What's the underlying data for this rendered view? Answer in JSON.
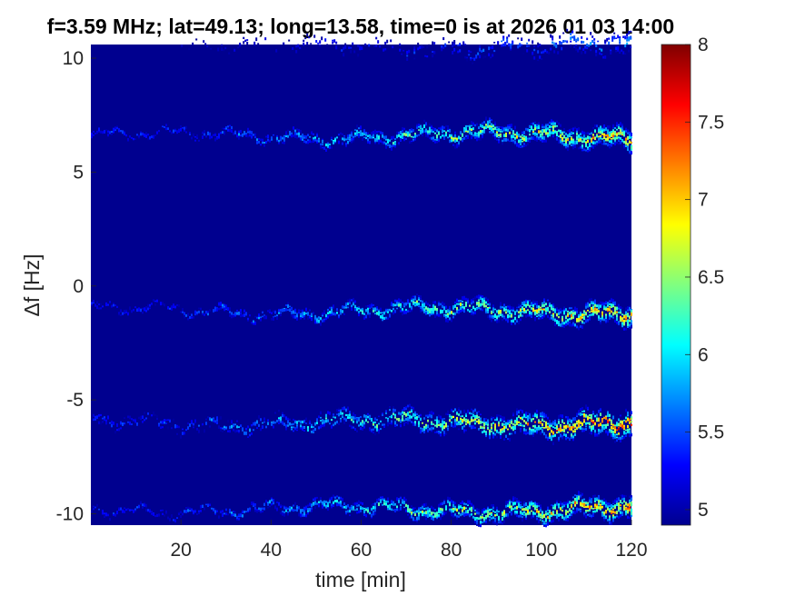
{
  "chart_data": {
    "type": "heatmap",
    "title": "f=3.59 MHz;  lat=49.13; long=13.58, time=0 is at 2026 01 03 14:00",
    "xlabel": "time [min]",
    "ylabel": "Δf [Hz]",
    "xlim": [
      0,
      120
    ],
    "ylim": [
      -10.5,
      10.6
    ],
    "xticks": [
      20,
      40,
      60,
      80,
      100,
      120
    ],
    "yticks": [
      10,
      5,
      0,
      -5,
      -10
    ],
    "colorbar": {
      "range": [
        4.9,
        8
      ],
      "ticks": [
        8,
        7.5,
        7,
        6.5,
        6,
        5.5,
        5
      ],
      "colormap": "jet"
    },
    "background_value": 4.9,
    "traces": [
      {
        "center_hz": 6.6,
        "x_start_min": 0,
        "peak_value": 7.6,
        "intensity_growth": "weak before 70 min, strongest 90-120 min"
      },
      {
        "center_hz": -1.1,
        "x_start_min": 0,
        "peak_value": 7.7,
        "intensity_growth": "weak before 70 min, strongest 80-120 min"
      },
      {
        "center_hz": -6.0,
        "x_start_min": 0,
        "peak_value": 8.0,
        "intensity_growth": "moderate throughout, strongest 90-120 min"
      },
      {
        "center_hz": -9.8,
        "x_start_min": 0,
        "peak_value": 7.8,
        "intensity_growth": "sparse before 60 min, strongest 95-120 min"
      },
      {
        "center_hz": 10.5,
        "x_start_min": 20,
        "peak_value": 6.0,
        "intensity_growth": "faint, intermittent"
      }
    ]
  }
}
